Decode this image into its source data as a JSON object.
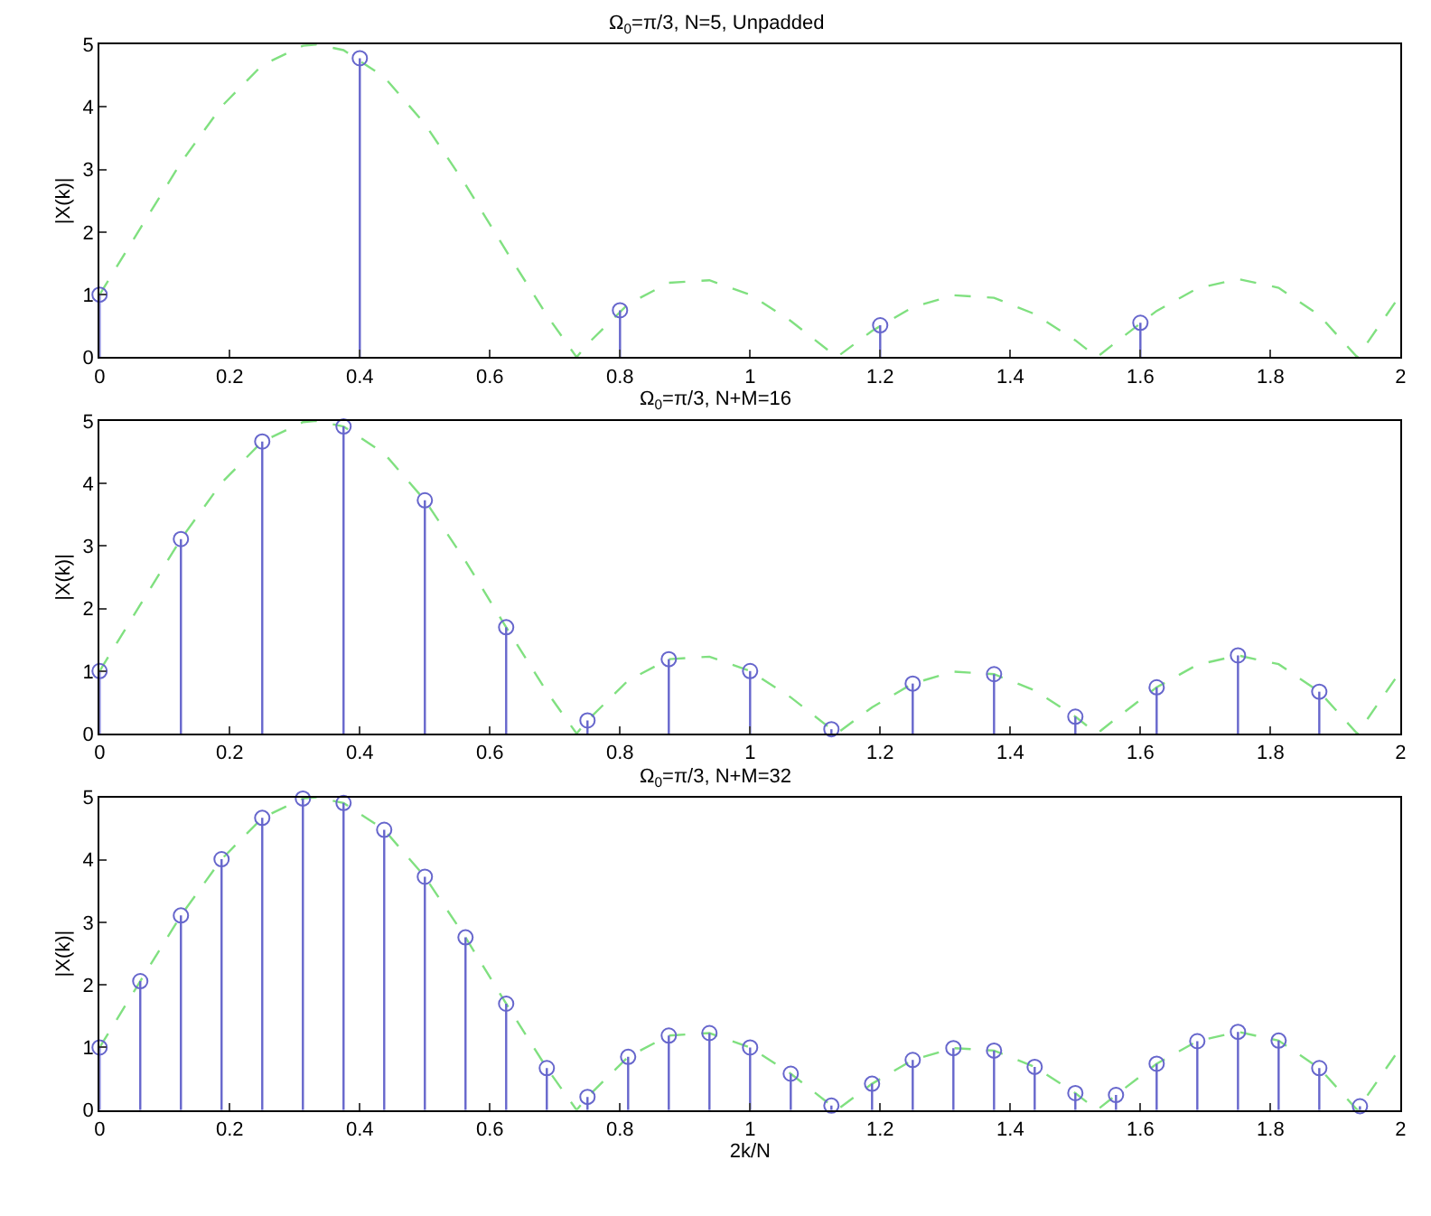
{
  "chart_data": [
    {
      "type": "lollipop",
      "title": "Ω$_{0}$=π/3, N=5, Unpadded",
      "ylabel": "|X(k)|",
      "xlim": [
        0,
        2
      ],
      "ylim": [
        0,
        5
      ],
      "xticks": [
        0,
        0.2,
        0.4,
        0.6,
        0.8,
        1,
        1.2,
        1.4,
        1.6,
        1.8,
        2
      ],
      "yticks": [
        0,
        1,
        2,
        3,
        4,
        5
      ],
      "grid": false,
      "series": [
        {
          "type": "line",
          "color": "#80e080",
          "line_style": "dashed",
          "x": [
            0,
            0.0625,
            0.125,
            0.1875,
            0.25,
            0.3125,
            0.3333,
            0.375,
            0.4375,
            0.5,
            0.5625,
            0.625,
            0.6875,
            0.7333,
            0.75,
            0.8125,
            0.875,
            0.9375,
            1,
            1.0625,
            1.125,
            1.1333,
            1.1875,
            1.25,
            1.3125,
            1.375,
            1.4375,
            1.5,
            1.5333,
            1.5625,
            1.625,
            1.6875,
            1.75,
            1.8125,
            1.875,
            1.9333,
            1.9375,
            2
          ],
          "values": [
            1,
            2.06,
            3.11,
            4.01,
            4.67,
            4.98,
            5,
            4.91,
            4.48,
            3.73,
            2.76,
            1.7,
            0.67,
            0,
            0.21,
            0.85,
            1.19,
            1.23,
            1,
            0.58,
            0.07,
            0,
            0.42,
            0.8,
            0.99,
            0.95,
            0.69,
            0.27,
            0,
            0.24,
            0.74,
            1.1,
            1.25,
            1.11,
            0.67,
            0,
            0.06,
            1
          ]
        },
        {
          "marker": "circle",
          "color": "#6666cc",
          "x": [
            0,
            0.4,
            0.8,
            1.2,
            1.6
          ],
          "values": [
            1,
            4.78,
            0.75,
            0.51,
            0.55
          ]
        }
      ]
    },
    {
      "type": "lollipop",
      "title": "Ω$_{0}$=π/3, N+M=16",
      "ylabel": "|X(k)|",
      "xlim": [
        0,
        2
      ],
      "ylim": [
        0,
        5
      ],
      "xticks": [
        0,
        0.2,
        0.4,
        0.6,
        0.8,
        1,
        1.2,
        1.4,
        1.6,
        1.8,
        2
      ],
      "yticks": [
        0,
        1,
        2,
        3,
        4,
        5
      ],
      "grid": false,
      "series": [
        {
          "type": "line",
          "color": "#80e080",
          "line_style": "dashed",
          "x": [
            0,
            0.0625,
            0.125,
            0.1875,
            0.25,
            0.3125,
            0.3333,
            0.375,
            0.4375,
            0.5,
            0.5625,
            0.625,
            0.6875,
            0.7333,
            0.75,
            0.8125,
            0.875,
            0.9375,
            1,
            1.0625,
            1.125,
            1.1333,
            1.1875,
            1.25,
            1.3125,
            1.375,
            1.4375,
            1.5,
            1.5333,
            1.5625,
            1.625,
            1.6875,
            1.75,
            1.8125,
            1.875,
            1.9333,
            1.9375,
            2
          ],
          "values": [
            1,
            2.06,
            3.11,
            4.01,
            4.67,
            4.98,
            5,
            4.91,
            4.48,
            3.73,
            2.76,
            1.7,
            0.67,
            0,
            0.21,
            0.85,
            1.19,
            1.23,
            1,
            0.58,
            0.07,
            0,
            0.42,
            0.8,
            0.99,
            0.95,
            0.69,
            0.27,
            0,
            0.24,
            0.74,
            1.1,
            1.25,
            1.11,
            0.67,
            0,
            0.06,
            1
          ]
        },
        {
          "marker": "circle",
          "color": "#6666cc",
          "x": [
            0,
            0.125,
            0.25,
            0.375,
            0.5,
            0.625,
            0.75,
            0.875,
            1,
            1.125,
            1.25,
            1.375,
            1.5,
            1.625,
            1.75,
            1.875
          ],
          "values": [
            1,
            3.11,
            4.67,
            4.91,
            3.73,
            1.7,
            0.21,
            1.19,
            1,
            0.07,
            0.8,
            0.95,
            0.27,
            0.74,
            1.25,
            0.67
          ]
        }
      ]
    },
    {
      "type": "lollipop",
      "title": "Ω$_{0}$=π/3, N+M=32",
      "xlabel": "2k/N",
      "ylabel": "|X(k)|",
      "xlim": [
        0,
        2
      ],
      "ylim": [
        0,
        5
      ],
      "xticks": [
        0,
        0.2,
        0.4,
        0.6,
        0.8,
        1,
        1.2,
        1.4,
        1.6,
        1.8,
        2
      ],
      "yticks": [
        0,
        1,
        2,
        3,
        4,
        5
      ],
      "grid": false,
      "series": [
        {
          "type": "line",
          "color": "#80e080",
          "line_style": "dashed",
          "x": [
            0,
            0.0625,
            0.125,
            0.1875,
            0.25,
            0.3125,
            0.3333,
            0.375,
            0.4375,
            0.5,
            0.5625,
            0.625,
            0.6875,
            0.7333,
            0.75,
            0.8125,
            0.875,
            0.9375,
            1,
            1.0625,
            1.125,
            1.1333,
            1.1875,
            1.25,
            1.3125,
            1.375,
            1.4375,
            1.5,
            1.5333,
            1.5625,
            1.625,
            1.6875,
            1.75,
            1.8125,
            1.875,
            1.9333,
            1.9375,
            2
          ],
          "values": [
            1,
            2.06,
            3.11,
            4.01,
            4.67,
            4.98,
            5,
            4.91,
            4.48,
            3.73,
            2.76,
            1.7,
            0.67,
            0,
            0.21,
            0.85,
            1.19,
            1.23,
            1,
            0.58,
            0.07,
            0,
            0.42,
            0.8,
            0.99,
            0.95,
            0.69,
            0.27,
            0,
            0.24,
            0.74,
            1.1,
            1.25,
            1.11,
            0.67,
            0,
            0.06,
            1
          ]
        },
        {
          "marker": "circle",
          "color": "#6666cc",
          "x": [
            0,
            0.0625,
            0.125,
            0.1875,
            0.25,
            0.3125,
            0.375,
            0.4375,
            0.5,
            0.5625,
            0.625,
            0.6875,
            0.75,
            0.8125,
            0.875,
            0.9375,
            1,
            1.0625,
            1.125,
            1.1875,
            1.25,
            1.3125,
            1.375,
            1.4375,
            1.5,
            1.5625,
            1.625,
            1.6875,
            1.75,
            1.8125,
            1.875,
            1.9375
          ],
          "values": [
            1,
            2.06,
            3.11,
            4.01,
            4.67,
            4.98,
            4.91,
            4.48,
            3.73,
            2.76,
            1.7,
            0.67,
            0.21,
            0.85,
            1.19,
            1.23,
            1,
            0.58,
            0.07,
            0.42,
            0.8,
            0.99,
            0.95,
            0.69,
            0.27,
            0.24,
            0.74,
            1.1,
            1.25,
            1.11,
            0.67,
            0.06
          ]
        }
      ]
    }
  ]
}
